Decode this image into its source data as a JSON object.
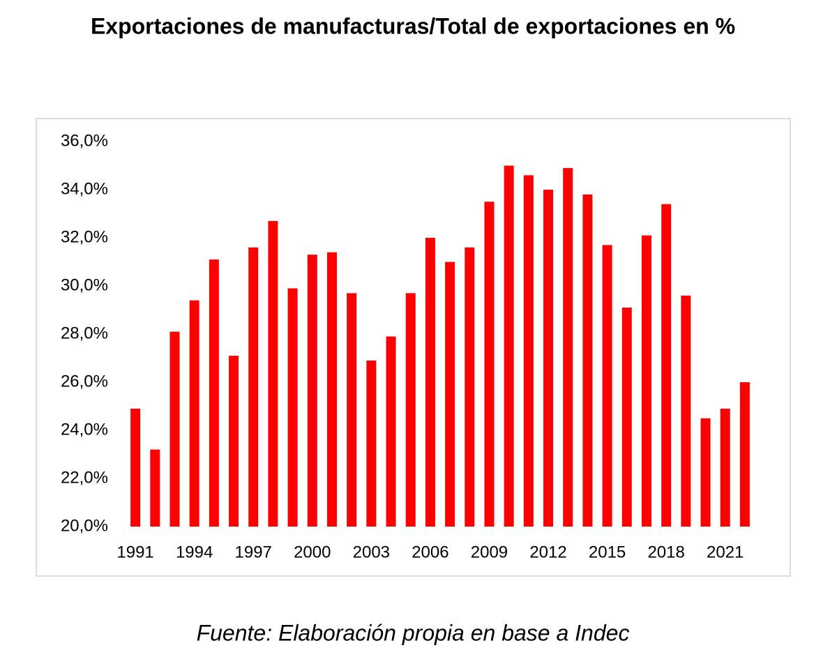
{
  "chart_data": {
    "type": "bar",
    "title": "Exportaciones de manufacturas/Total de exportaciones en %",
    "source": "Fuente: Elaboración propia en base a Indec",
    "categories": [
      "1991",
      null,
      null,
      "1994",
      null,
      null,
      "1997",
      null,
      null,
      "2000",
      null,
      null,
      "2003",
      null,
      null,
      "2006",
      null,
      null,
      "2009",
      null,
      null,
      "2012",
      null,
      null,
      "2015",
      null,
      null,
      "2018",
      null,
      null,
      "2021",
      null
    ],
    "values": [
      24.9,
      23.2,
      28.1,
      29.4,
      31.1,
      27.1,
      31.6,
      32.7,
      29.9,
      31.3,
      31.4,
      29.7,
      26.9,
      27.9,
      29.7,
      32.0,
      31.0,
      31.6,
      33.5,
      35.0,
      34.6,
      34.0,
      34.9,
      33.8,
      31.7,
      29.1,
      32.1,
      33.4,
      29.6,
      24.5,
      24.9,
      26.0
    ],
    "color": "#ff0000",
    "ylim": [
      20,
      36
    ],
    "yticks": [
      {
        "value": 20,
        "label": "20,0%"
      },
      {
        "value": 22,
        "label": "22,0%"
      },
      {
        "value": 24,
        "label": "24,0%"
      },
      {
        "value": 26,
        "label": "26,0%"
      },
      {
        "value": 28,
        "label": "28,0%"
      },
      {
        "value": 30,
        "label": "30,0%"
      },
      {
        "value": 32,
        "label": "32,0%"
      },
      {
        "value": 34,
        "label": "34,0%"
      },
      {
        "value": 36,
        "label": "36,0%"
      }
    ],
    "grid": false
  }
}
